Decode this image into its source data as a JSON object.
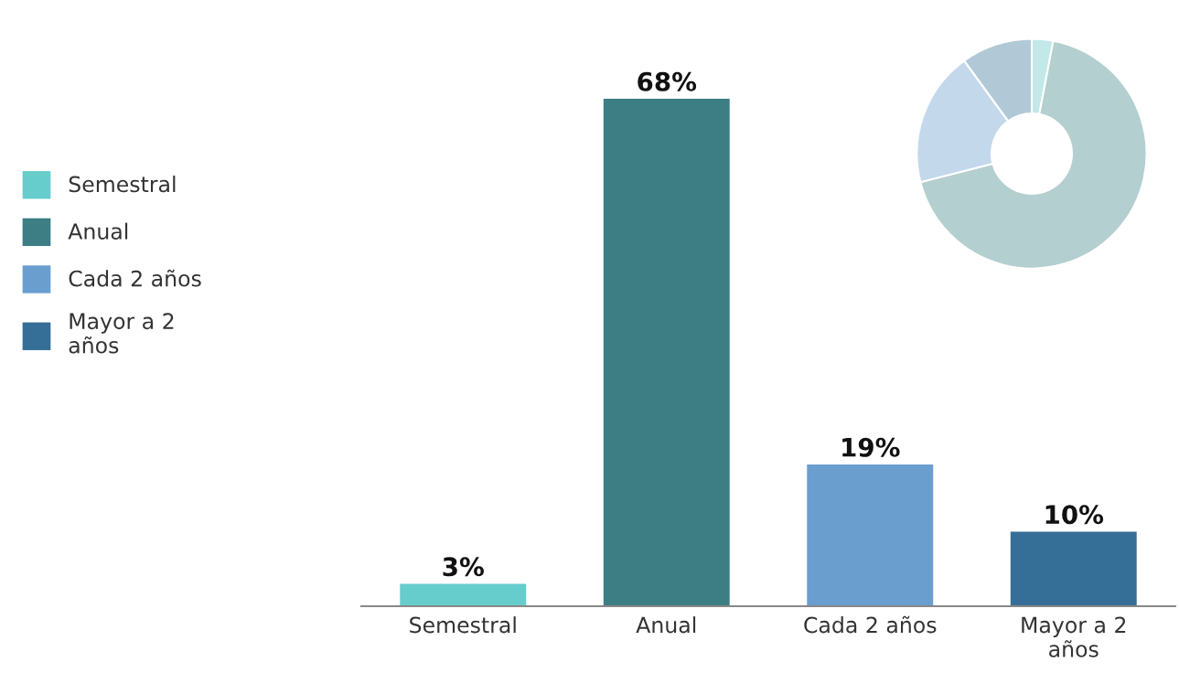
{
  "chart_data": [
    {
      "type": "bar",
      "categories": [
        "Semestral",
        "Anual",
        "Cada 2 años",
        "Mayor a 2 años"
      ],
      "stacked": true,
      "data_labels": true,
      "legend": "left",
      "series": [
        {
          "name": "Semestral",
          "color": "#66cdcc",
          "values": [
            3,
            null,
            null,
            null
          ],
          "value_labels": [
            "3%",
            null,
            null,
            null
          ]
        },
        {
          "name": "Anual",
          "color": "#3d7e84",
          "values": [
            null,
            68,
            null,
            null
          ],
          "value_labels": [
            null,
            "68%",
            null,
            null
          ]
        },
        {
          "name": "Cada 2 años",
          "color": "#6a9ecf",
          "values": [
            null,
            null,
            19,
            null
          ],
          "value_labels": [
            null,
            null,
            "19%",
            null
          ]
        },
        {
          "name": "Mayor a 2 años",
          "color": "#356e96",
          "values": [
            null,
            null,
            null,
            10
          ],
          "value_labels": [
            null,
            null,
            null,
            "10%"
          ]
        }
      ]
    },
    {
      "type": "donut",
      "categories": [
        null,
        null,
        null,
        null
      ],
      "values": [
        3,
        68,
        19,
        10
      ],
      "colors": [
        "#c2e8e8",
        "#b4cfd0",
        "#c4d8ec",
        "#b1c9d7"
      ]
    }
  ]
}
